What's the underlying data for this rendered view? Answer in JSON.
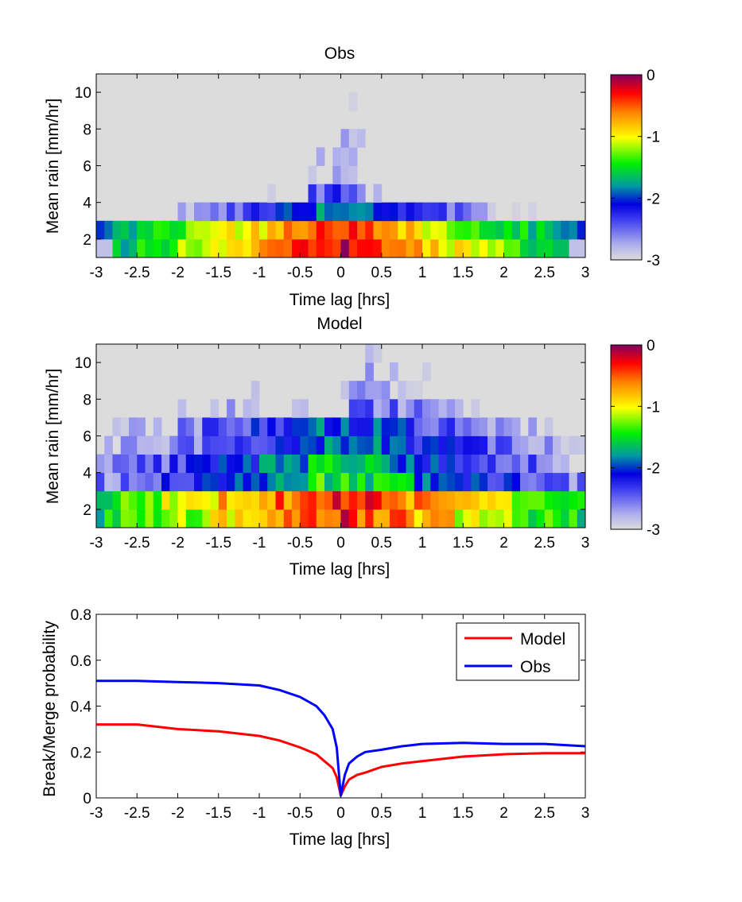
{
  "chart_data": [
    {
      "type": "heatmap",
      "title": "Obs",
      "xlabel": "Time lag [hrs]",
      "ylabel": "Mean rain [mm/hr]",
      "xlim": [
        -3,
        3
      ],
      "ylim": [
        1,
        11
      ],
      "xticks": [
        "-3",
        "-2.5",
        "-2",
        "-1.5",
        "-1",
        "-0.5",
        "0",
        "0.5",
        "1",
        "1.5",
        "2",
        "2.5",
        "3"
      ],
      "yticks": [
        "2",
        "4",
        "6",
        "8",
        "10"
      ],
      "colorbar": {
        "range": [
          -3,
          0
        ],
        "ticks": [
          "0",
          "-1",
          "-2",
          "-3"
        ]
      },
      "grid": false
    },
    {
      "type": "heatmap",
      "title": "Model",
      "xlabel": "Time lag [hrs]",
      "ylabel": "Mean rain [mm/hr]",
      "xlim": [
        -3,
        3
      ],
      "ylim": [
        1,
        11
      ],
      "xticks": [
        "-3",
        "-2.5",
        "-2",
        "-1.5",
        "-1",
        "-0.5",
        "0",
        "0.5",
        "1",
        "1.5",
        "2",
        "2.5",
        "3"
      ],
      "yticks": [
        "2",
        "4",
        "6",
        "8",
        "10"
      ],
      "colorbar": {
        "range": [
          -3,
          0
        ],
        "ticks": [
          "0",
          "-1",
          "-2",
          "-3"
        ]
      },
      "grid": false
    },
    {
      "type": "line",
      "title": "",
      "xlabel": "Time lag [hrs]",
      "ylabel": "Break/Merge probability",
      "xlim": [
        -3,
        3
      ],
      "ylim": [
        0,
        0.8
      ],
      "xticks": [
        "-3",
        "-2.5",
        "-2",
        "-1.5",
        "-1",
        "-0.5",
        "0",
        "0.5",
        "1",
        "1.5",
        "2",
        "2.5",
        "3"
      ],
      "yticks": [
        "0",
        "0.2",
        "0.4",
        "0.6",
        "0.8"
      ],
      "legend": "top-right",
      "grid": false,
      "x": [
        -3,
        -2.5,
        -2,
        -1.5,
        -1,
        -0.75,
        -0.5,
        -0.3,
        -0.2,
        -0.1,
        -0.05,
        0,
        0.05,
        0.1,
        0.2,
        0.3,
        0.5,
        0.75,
        1,
        1.5,
        2,
        2.5,
        3
      ],
      "series": [
        {
          "name": "Model",
          "color": "#ff0000",
          "values": [
            0.32,
            0.32,
            0.3,
            0.29,
            0.27,
            0.25,
            0.22,
            0.19,
            0.16,
            0.13,
            0.09,
            0.01,
            0.05,
            0.08,
            0.1,
            0.11,
            0.135,
            0.15,
            0.16,
            0.18,
            0.19,
            0.195,
            0.195
          ]
        },
        {
          "name": "Obs",
          "color": "#0000ff",
          "values": [
            0.51,
            0.51,
            0.505,
            0.5,
            0.49,
            0.47,
            0.44,
            0.4,
            0.36,
            0.3,
            0.22,
            0.01,
            0.1,
            0.15,
            0.18,
            0.2,
            0.21,
            0.225,
            0.235,
            0.24,
            0.235,
            0.235,
            0.225
          ]
        }
      ]
    }
  ]
}
